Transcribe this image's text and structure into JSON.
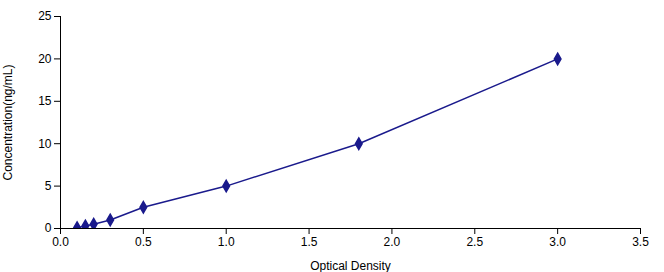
{
  "chart_data": {
    "type": "line",
    "xlabel": "Optical Density",
    "ylabel": "Concentration(ng/mL)",
    "x": [
      0.1,
      0.15,
      0.2,
      0.3,
      0.5,
      1.0,
      1.8,
      3.0
    ],
    "values": [
      0.1,
      0.3,
      0.5,
      1.0,
      2.5,
      5.0,
      10.0,
      20.0
    ],
    "color": "#1a1a8c",
    "marker": "diamond",
    "xlim": [
      0,
      3.5
    ],
    "ylim": [
      0,
      25
    ],
    "xticks": [
      0,
      0.5,
      1.0,
      1.5,
      2.0,
      2.5,
      3.0,
      3.5
    ],
    "yticks": [
      0,
      5,
      10,
      15,
      20,
      25
    ],
    "grid": false
  }
}
